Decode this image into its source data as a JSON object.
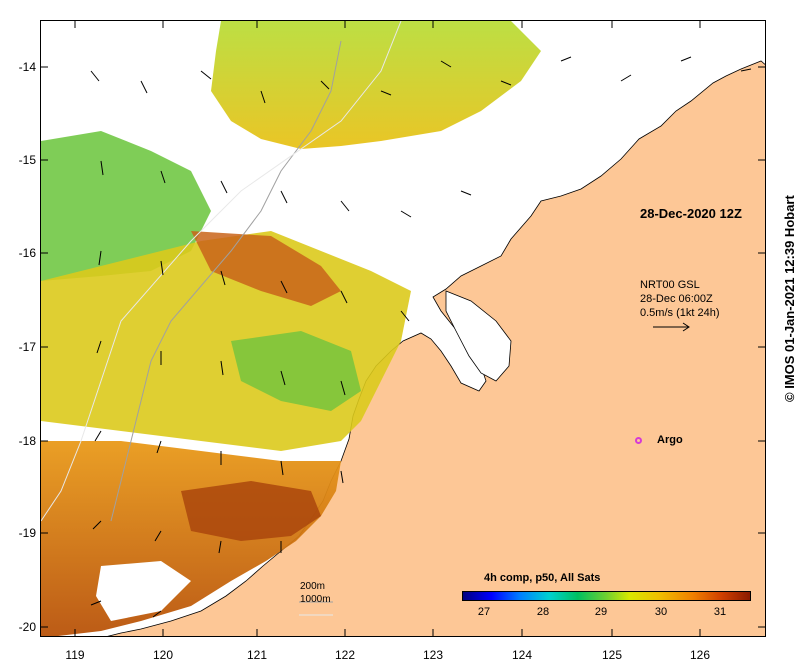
{
  "map": {
    "lat_ticks": [
      "-14",
      "-15",
      "-16",
      "-17",
      "-18",
      "-19",
      "-20"
    ],
    "lon_ticks": [
      "119",
      "120",
      "121",
      "122",
      "123",
      "124",
      "125",
      "126"
    ],
    "colors": {
      "land": "#fdc796",
      "sea_bg": "#ffffff"
    }
  },
  "date_label": "28-Dec-2020 12Z",
  "current": {
    "line1": "NRT00 GSL",
    "line2": "28-Dec 06:00Z",
    "line3": "0.5m/s (1kt 24h)"
  },
  "argo_label": "Argo",
  "depth_legend": {
    "line1": "200m",
    "line2": "1000m"
  },
  "colorbar": {
    "title": "4h comp, p50, All Sats",
    "ticks": [
      "27",
      "28",
      "29",
      "30",
      "31"
    ]
  },
  "credit": "© IMOS 01-Jan-2021 12:39 Hobart"
}
